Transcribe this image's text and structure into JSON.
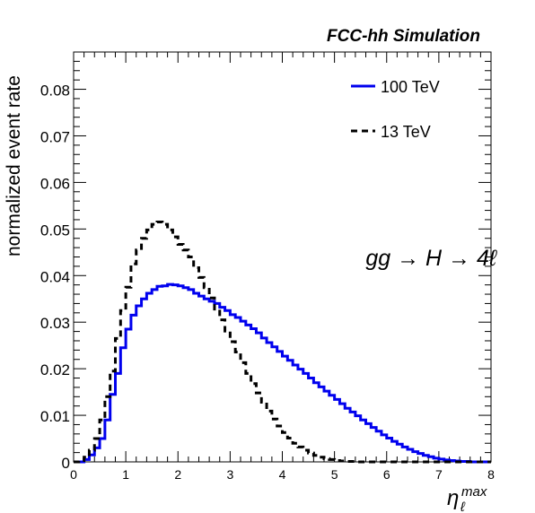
{
  "chart_data": {
    "type": "line",
    "title": "FCC-hh Simulation",
    "annotation": "gg → H → 4ℓ",
    "xlabel": "η",
    "xlabel_sub": "ℓ",
    "xlabel_sup": "max",
    "ylabel": "normalized event rate",
    "xlim": [
      0,
      8
    ],
    "ylim": [
      0,
      0.088
    ],
    "x_ticks": [
      "0",
      "1",
      "2",
      "3",
      "4",
      "5",
      "6",
      "7",
      "8"
    ],
    "y_ticks": [
      "0",
      "0.01",
      "0.02",
      "0.03",
      "0.04",
      "0.05",
      "0.06",
      "0.07",
      "0.08"
    ],
    "y_tick_values": [
      0,
      0.01,
      0.02,
      0.03,
      0.04,
      0.05,
      0.06,
      0.07,
      0.08
    ],
    "legend_placement": "top-right",
    "bin_width": 0.1,
    "series": [
      {
        "name": "100 TeV",
        "style": "solid",
        "color": "#0000ee",
        "values": [
          0,
          0,
          0.0005,
          0.0015,
          0.003,
          0.005,
          0.009,
          0.0145,
          0.019,
          0.0245,
          0.0285,
          0.0315,
          0.0335,
          0.035,
          0.0362,
          0.037,
          0.0377,
          0.0378,
          0.0381,
          0.038,
          0.0378,
          0.0374,
          0.037,
          0.0362,
          0.0356,
          0.035,
          0.0345,
          0.034,
          0.0332,
          0.0325,
          0.0316,
          0.031,
          0.0302,
          0.0294,
          0.0286,
          0.0277,
          0.0266,
          0.0256,
          0.0247,
          0.0237,
          0.0227,
          0.0218,
          0.0208,
          0.0199,
          0.019,
          0.018,
          0.017,
          0.0161,
          0.0152,
          0.0143,
          0.0134,
          0.0125,
          0.0115,
          0.0107,
          0.0099,
          0.009,
          0.0082,
          0.0074,
          0.0066,
          0.0058,
          0.0051,
          0.0044,
          0.0038,
          0.0032,
          0.0027,
          0.0022,
          0.0018,
          0.0014,
          0.0011,
          0.0008,
          0.0006,
          0.0004,
          0.0003,
          0.0002,
          0.0001,
          0.0001,
          0,
          0,
          0,
          0
        ]
      },
      {
        "name": "13 TeV",
        "style": "dashed",
        "color": "#000000",
        "values": [
          0,
          0.0003,
          0.001,
          0.0025,
          0.005,
          0.009,
          0.014,
          0.0195,
          0.0265,
          0.0325,
          0.0375,
          0.0425,
          0.0455,
          0.048,
          0.0498,
          0.051,
          0.0515,
          0.051,
          0.0498,
          0.0483,
          0.0467,
          0.0455,
          0.044,
          0.0417,
          0.0396,
          0.0374,
          0.0352,
          0.0328,
          0.0305,
          0.0281,
          0.0258,
          0.0236,
          0.0213,
          0.019,
          0.0168,
          0.0148,
          0.0128,
          0.0109,
          0.0092,
          0.0077,
          0.0063,
          0.0051,
          0.004,
          0.0032,
          0.0025,
          0.0019,
          0.0014,
          0.001,
          0.0007,
          0.0005,
          0.0003,
          0.0002,
          0.0001,
          0.0001,
          0,
          0,
          0,
          0,
          0,
          0,
          0,
          0,
          0,
          0,
          0,
          0,
          0,
          0,
          0,
          0,
          0,
          0,
          0,
          0,
          0,
          0,
          0,
          0,
          0,
          0
        ]
      }
    ]
  }
}
